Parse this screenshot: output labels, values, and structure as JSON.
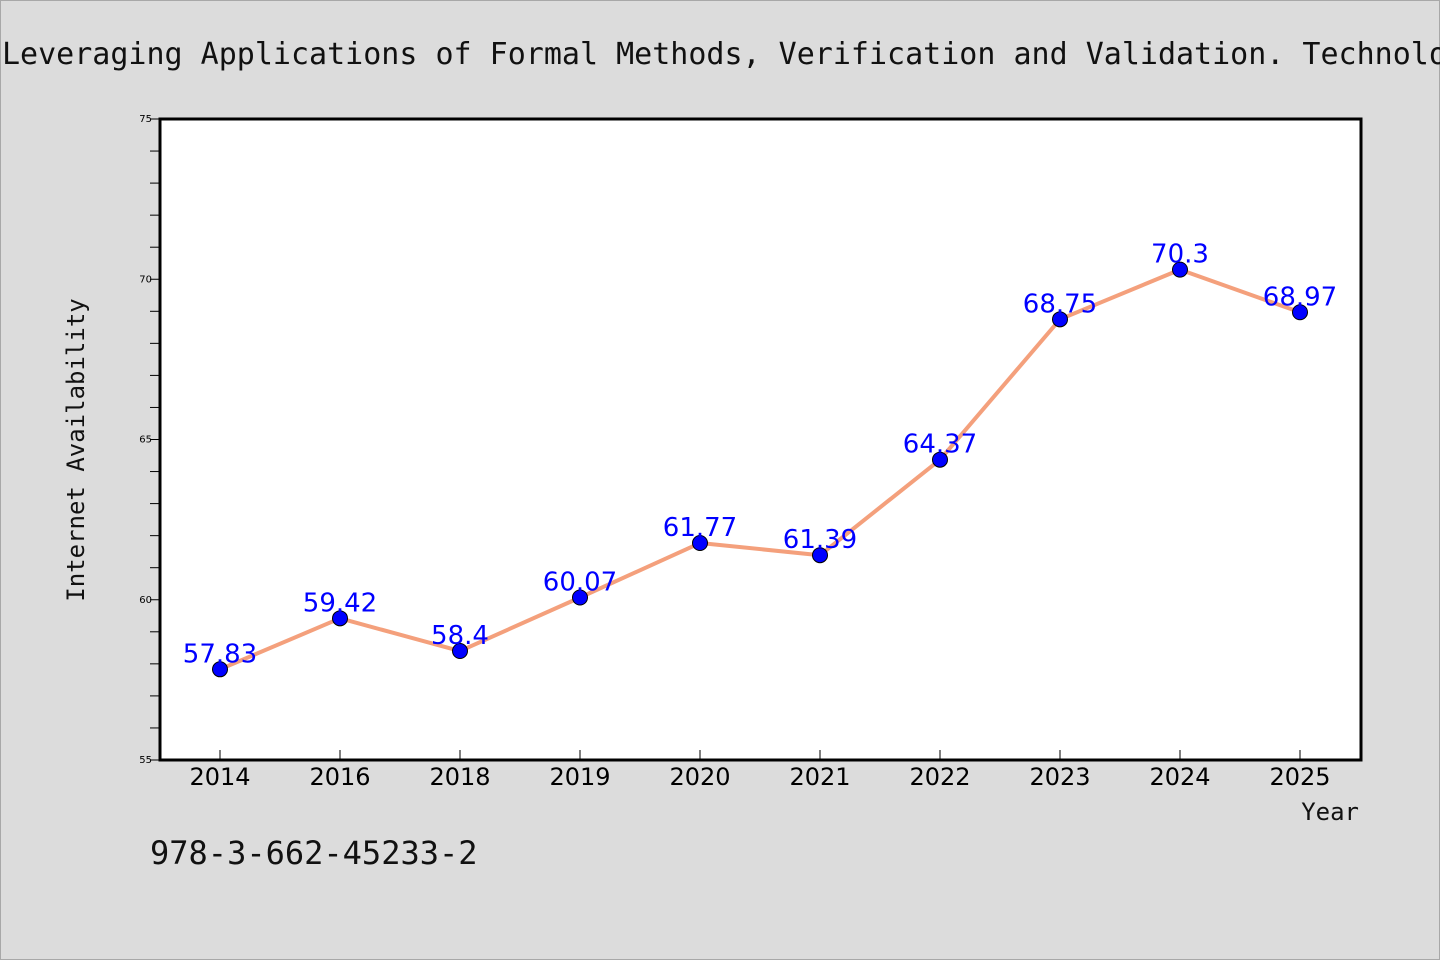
{
  "title": "Leveraging Applications of Formal Methods, Verification and Validation. Technolo",
  "footer_text": "978-3-662-45233-2",
  "chart_data": {
    "type": "line",
    "title": "Leveraging Applications of Formal Methods, Verification and Validation. Technolo",
    "xlabel": "Year",
    "ylabel": "Internet Availability",
    "categories": [
      "2014",
      "2016",
      "2018",
      "2019",
      "2020",
      "2021",
      "2022",
      "2023",
      "2024",
      "2025"
    ],
    "series": [
      {
        "values": [
          57.83,
          59.42,
          58.4,
          60.07,
          61.77,
          61.39,
          64.37,
          68.75,
          70.3,
          68.97
        ],
        "labels": [
          "57.83",
          "59.42",
          "58.4",
          "60.07",
          "61.77",
          "61.39",
          "64.37",
          "68.75",
          "70.3",
          "68.97"
        ],
        "line_color": "#f4a07c",
        "marker_color": "#0000ff"
      }
    ],
    "ylim": [
      55,
      75
    ],
    "yticks": [
      55,
      60,
      65,
      70,
      75
    ],
    "ytick_labels": [
      "55",
      "60",
      "65",
      "70",
      "75"
    ],
    "grid": false,
    "legend": "none",
    "colors": {
      "background": "#dcdcdc",
      "plot_background": "#ffffff",
      "line": "#f4a07c",
      "marker": "#0000ff",
      "data_label": "#0000ff"
    }
  }
}
